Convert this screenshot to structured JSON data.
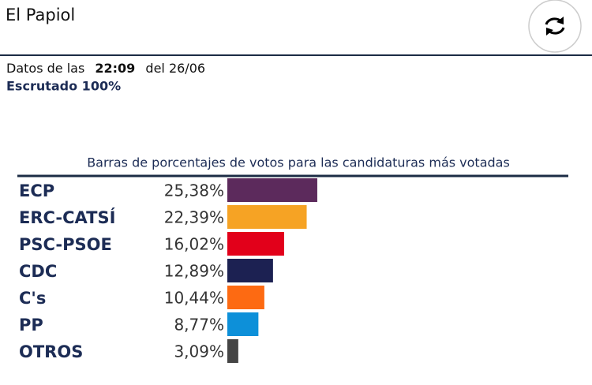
{
  "header": {
    "title": "El Papiol",
    "datos_prefix": "Datos de las",
    "time": "22:09",
    "date_text": "del 26/06",
    "status": "Escrutado 100%"
  },
  "chart_data": {
    "type": "bar",
    "orientation": "horizontal",
    "title": "Barras de porcentajes de votos para las candidaturas más votadas",
    "categories": [
      "ECP",
      "ERC-CATSÍ",
      "PSC-PSOE",
      "CDC",
      "C's",
      "PP",
      "OTROS"
    ],
    "values": [
      25.38,
      22.39,
      16.02,
      12.89,
      10.44,
      8.77,
      3.09
    ],
    "value_labels": [
      "25,38%",
      "22,39%",
      "16,02%",
      "12,89%",
      "10,44%",
      "8,77%",
      "3,09%"
    ],
    "colors": [
      "#5c2a5c",
      "#f6a324",
      "#e2001a",
      "#1c2152",
      "#fd6a12",
      "#0d90d9",
      "#444444"
    ]
  }
}
